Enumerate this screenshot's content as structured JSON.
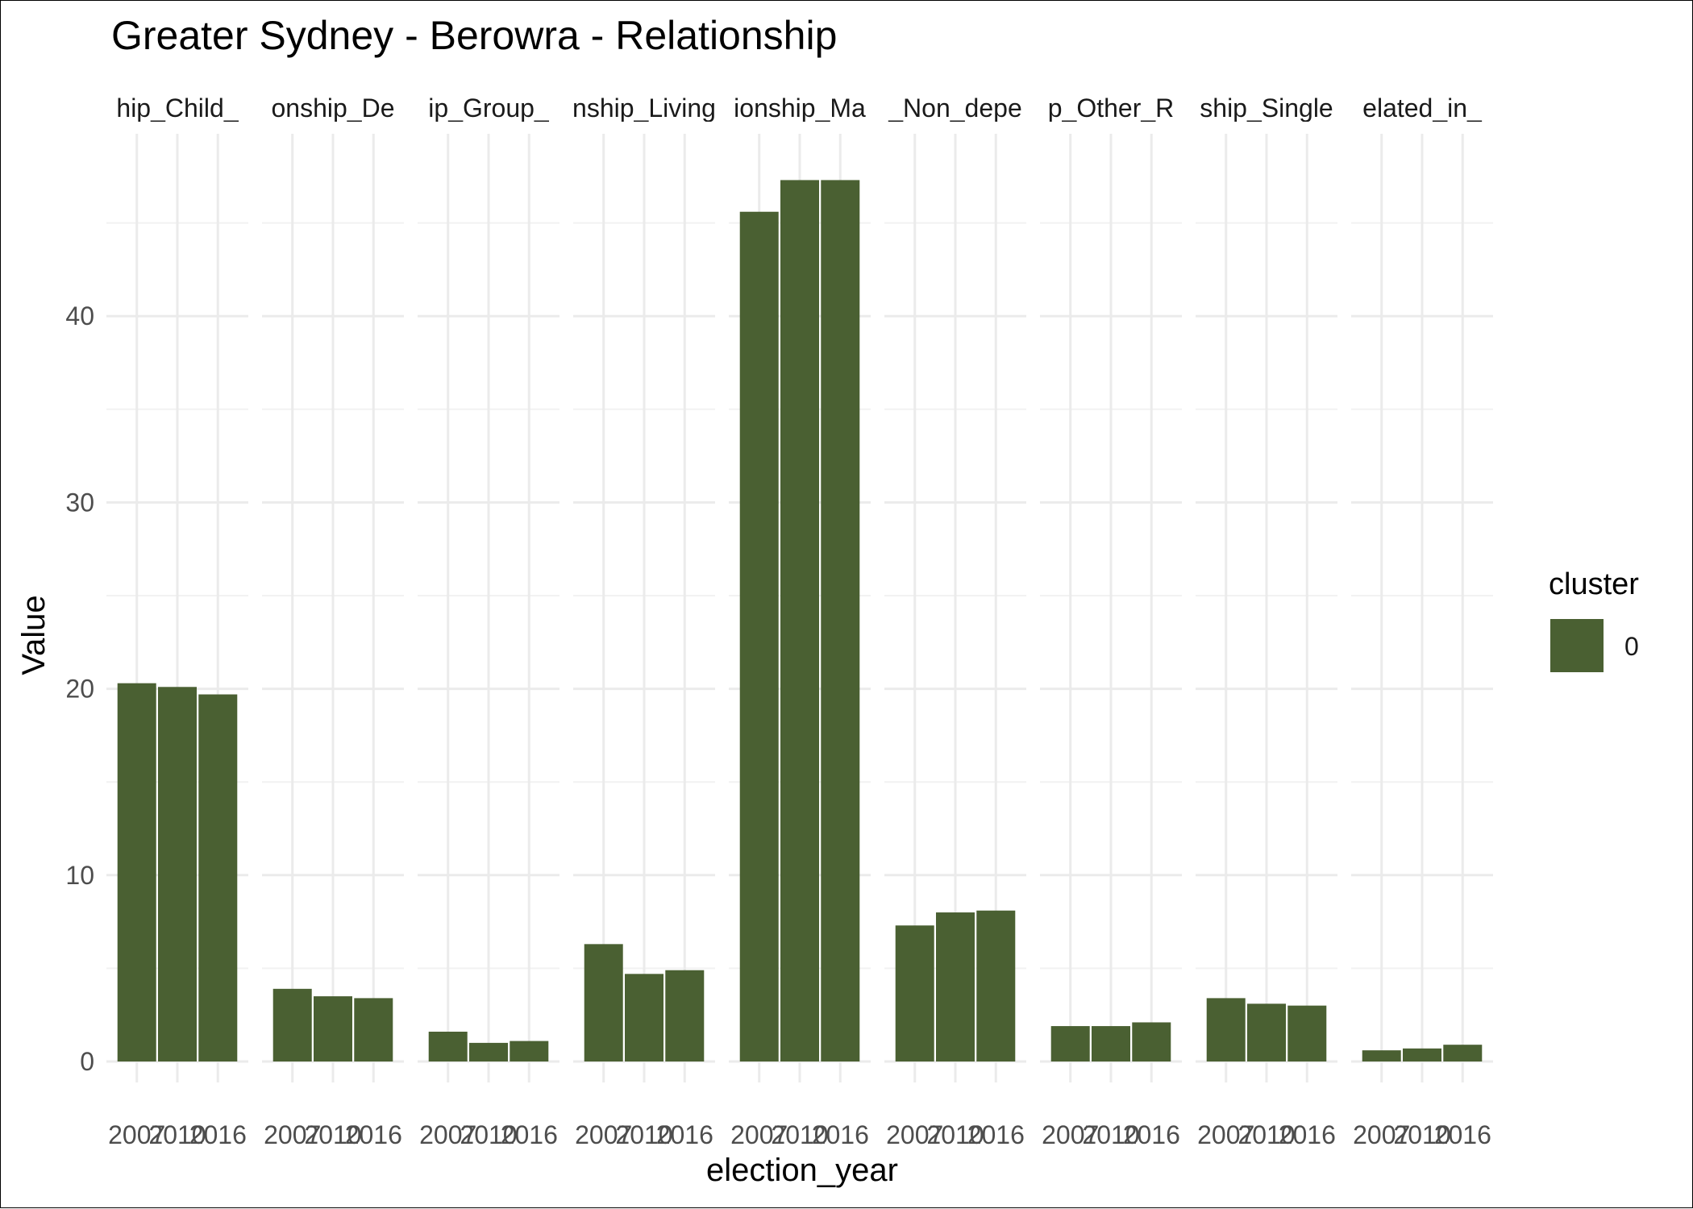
{
  "chart_data": {
    "type": "bar",
    "title": "Greater Sydney - Berowra - Relationship",
    "xlabel": "election_year",
    "ylabel": "Value",
    "ylim": [
      0,
      48
    ],
    "yticks": [
      0,
      10,
      20,
      30,
      40
    ],
    "x": [
      "2007",
      "2010",
      "2016"
    ],
    "grid": true,
    "legend": {
      "title": "cluster",
      "position": "right",
      "entries": [
        {
          "label": "0",
          "color": "#4a6032"
        }
      ]
    },
    "bar_color": "#4a6032",
    "facets": [
      {
        "label": "hip_Child_",
        "values": [
          20.3,
          20.1,
          19.7
        ]
      },
      {
        "label": "onship_De",
        "values": [
          3.9,
          3.5,
          3.4
        ]
      },
      {
        "label": "ip_Group_",
        "values": [
          1.6,
          1.0,
          1.1
        ]
      },
      {
        "label": "nship_Living",
        "values": [
          6.3,
          4.7,
          4.9
        ]
      },
      {
        "label": "ionship_Ma",
        "values": [
          45.6,
          47.3,
          47.3
        ]
      },
      {
        "label": "_Non_depe",
        "values": [
          7.3,
          8.0,
          8.1
        ]
      },
      {
        "label": "p_Other_R",
        "values": [
          1.9,
          1.9,
          2.1
        ]
      },
      {
        "label": "ship_Single",
        "values": [
          3.4,
          3.1,
          3.0
        ]
      },
      {
        "label": "elated_in_",
        "values": [
          0.6,
          0.7,
          0.9
        ]
      }
    ]
  }
}
